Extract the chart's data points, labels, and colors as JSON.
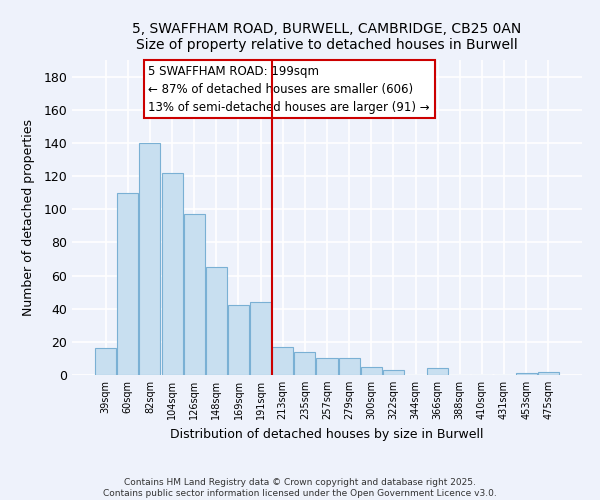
{
  "title": "5, SWAFFHAM ROAD, BURWELL, CAMBRIDGE, CB25 0AN",
  "subtitle": "Size of property relative to detached houses in Burwell",
  "xlabel": "Distribution of detached houses by size in Burwell",
  "ylabel": "Number of detached properties",
  "categories": [
    "39sqm",
    "60sqm",
    "82sqm",
    "104sqm",
    "126sqm",
    "148sqm",
    "169sqm",
    "191sqm",
    "213sqm",
    "235sqm",
    "257sqm",
    "279sqm",
    "300sqm",
    "322sqm",
    "344sqm",
    "366sqm",
    "388sqm",
    "410sqm",
    "431sqm",
    "453sqm",
    "475sqm"
  ],
  "values": [
    16,
    110,
    140,
    122,
    97,
    65,
    42,
    44,
    17,
    14,
    10,
    10,
    5,
    3,
    0,
    4,
    0,
    0,
    0,
    1,
    2
  ],
  "bar_color": "#c8dff0",
  "bar_edge_color": "#7ab0d4",
  "vline_x": 7.5,
  "vline_color": "#cc0000",
  "annotation_text": "5 SWAFFHAM ROAD: 199sqm\n← 87% of detached houses are smaller (606)\n13% of semi-detached houses are larger (91) →",
  "ylim": [
    0,
    190
  ],
  "yticks": [
    0,
    20,
    40,
    60,
    80,
    100,
    120,
    140,
    160,
    180
  ],
  "bg_color": "#eef2fb",
  "footer_line1": "Contains HM Land Registry data © Crown copyright and database right 2025.",
  "footer_line2": "Contains public sector information licensed under the Open Government Licence v3.0."
}
